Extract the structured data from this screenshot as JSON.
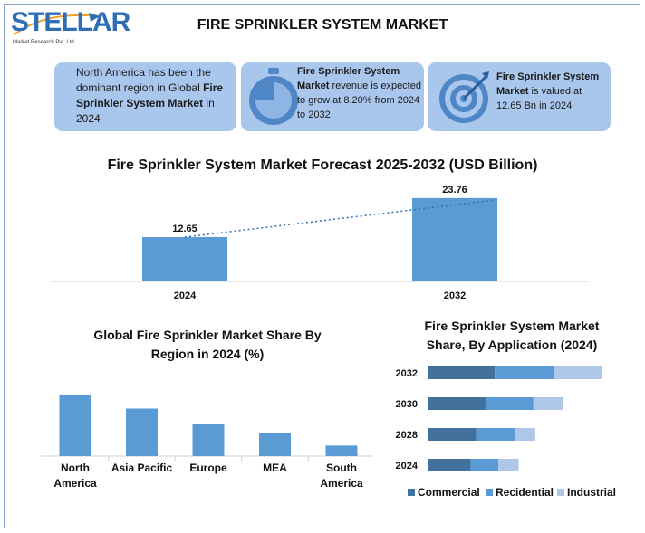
{
  "logo": {
    "word": "STELLAR",
    "sub": "Market Research Pvt. Ltd."
  },
  "header": {
    "title": "FIRE SPRINKLER SYSTEM MARKET"
  },
  "cards": [
    {
      "icon": "globe-icon",
      "text_before": "North America has been the dominant region in Global ",
      "bold": "Fire Sprinkler System Market",
      "text_after": " in 2024"
    },
    {
      "icon": "stopwatch-icon",
      "bold": "Fire Sprinkler System Market",
      "text_after": " revenue is expected to grow at 8.20% from 2024 to 2032"
    },
    {
      "icon": "target-icon",
      "bold": "Fire Sprinkler System Market",
      "text_after": " is valued at 12.65 Bn in 2024"
    }
  ],
  "colors": {
    "bar": "#5b9bd5",
    "card": "#a9c6ec",
    "commercial": "#41719c",
    "residential": "#5b9bd5",
    "industrial": "#aec6e8"
  },
  "chart_data": [
    {
      "type": "bar",
      "title": "Fire Sprinkler System Market Forecast 2025-2032 (USD Billion)",
      "categories": [
        "2024",
        "2032"
      ],
      "values": [
        12.65,
        23.76
      ],
      "data_labels": [
        "12.65",
        "23.76"
      ],
      "trendline": "dotted",
      "ylim": [
        0,
        24.5
      ]
    },
    {
      "type": "bar",
      "title": "Global Fire Sprinkler Market Share By Region in 2024 (%)",
      "categories": [
        "North America",
        "Asia Pacific",
        "Europe",
        "MEA",
        "South America"
      ],
      "values": [
        35,
        27,
        18,
        13,
        6
      ],
      "ylim": [
        0,
        36
      ]
    },
    {
      "type": "bar",
      "orientation": "horizontal",
      "stacked": true,
      "title": "Fire Sprinkler System Market Share, By Application (2024)",
      "categories": [
        "2032",
        "2030",
        "2028",
        "2024"
      ],
      "series": [
        {
          "name": "Commercial",
          "values": [
            36,
            31,
            26,
            23
          ]
        },
        {
          "name": "Recidential",
          "values": [
            32,
            26,
            21,
            15
          ]
        },
        {
          "name": "Industrial",
          "values": [
            26,
            16,
            11,
            11
          ]
        }
      ],
      "xlim": [
        0,
        96
      ],
      "legend": "bottom"
    }
  ]
}
